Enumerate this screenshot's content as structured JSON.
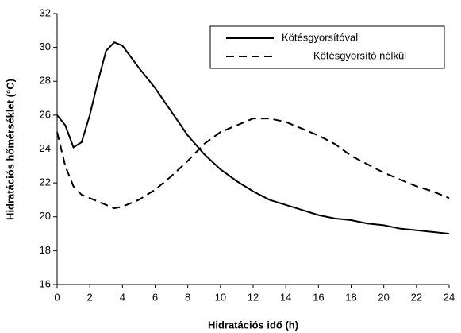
{
  "chart_data": {
    "type": "line",
    "xlabel": "Hidratációs idő (h)",
    "ylabel": "Hidratációs hőmérséklet (°C)",
    "x": [
      0,
      0.5,
      1,
      1.5,
      2,
      2.5,
      3,
      3.5,
      4,
      5,
      6,
      7,
      8,
      9,
      10,
      11,
      12,
      13,
      14,
      15,
      16,
      17,
      18,
      19,
      20,
      21,
      22,
      23,
      24
    ],
    "series": [
      {
        "name": "Kötésgyorsítóval",
        "color": "#000000",
        "dash": false,
        "values": [
          26,
          25.4,
          24.1,
          24.4,
          26,
          28,
          29.8,
          30.3,
          30.1,
          28.8,
          27.6,
          26.2,
          24.8,
          23.7,
          22.8,
          22.1,
          21.5,
          21,
          20.7,
          20.4,
          20.1,
          19.9,
          19.8,
          19.6,
          19.5,
          19.3,
          19.2,
          19.1,
          19.0
        ]
      },
      {
        "name": "Kötésgyorsító nélkül",
        "color": "#000000",
        "dash": true,
        "values": [
          25,
          23,
          21.8,
          21.3,
          21.1,
          20.9,
          20.7,
          20.5,
          20.6,
          21,
          21.6,
          22.4,
          23.3,
          24.3,
          25,
          25.4,
          25.8,
          25.8,
          25.6,
          25.2,
          24.8,
          24.3,
          23.6,
          23.1,
          22.6,
          22.2,
          21.8,
          21.5,
          21.1
        ]
      }
    ],
    "xlim": [
      0,
      24
    ],
    "xticks": [
      0,
      2,
      4,
      6,
      8,
      10,
      12,
      14,
      16,
      18,
      20,
      22,
      24
    ],
    "ylim": [
      16,
      32
    ],
    "yticks": [
      16,
      18,
      20,
      22,
      24,
      26,
      28,
      30,
      32
    ],
    "grid": false,
    "legend": "upper right"
  }
}
